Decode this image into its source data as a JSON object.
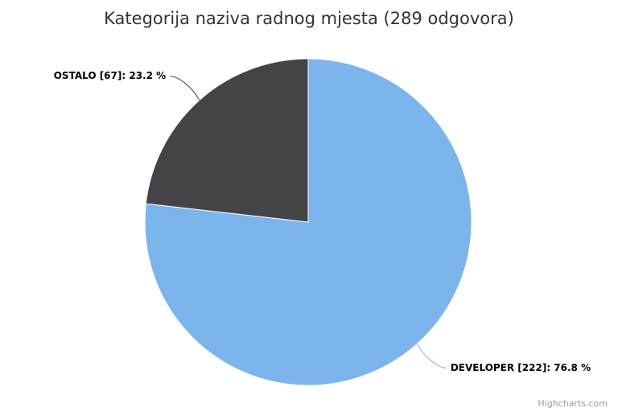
{
  "chart_data": {
    "type": "pie",
    "title": "Kategorija naziva radnog mjesta (289 odgovora)",
    "categories": [
      "DEVELOPER",
      "OSTALO"
    ],
    "values": [
      76.8,
      23.2
    ],
    "value_labels": [
      "DEVELOPER [222]: 76.8 %",
      "OSTALO [67]: 23.2 %"
    ],
    "colors": [
      "#7cb5ec",
      "#434348"
    ],
    "credits": "Highcharts.com"
  }
}
